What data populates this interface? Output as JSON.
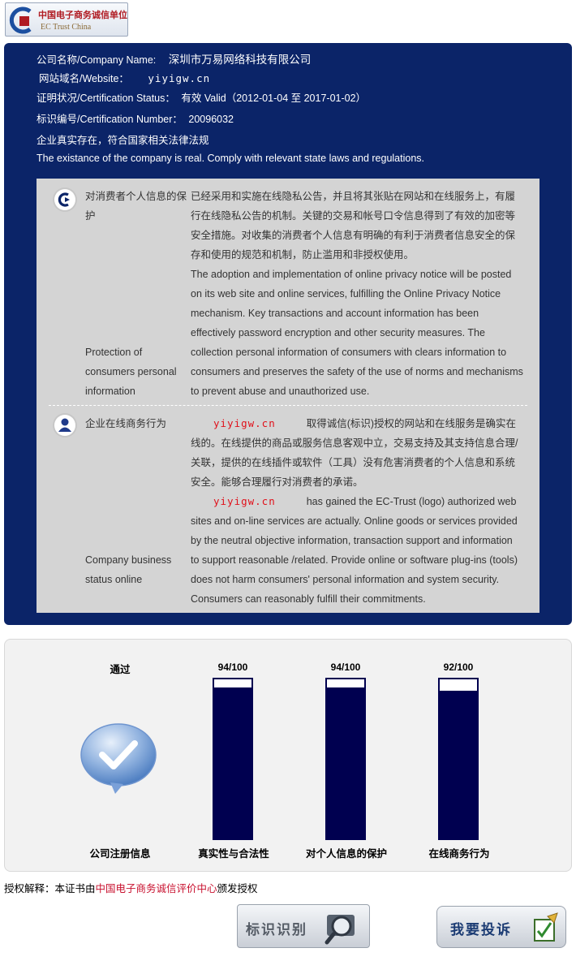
{
  "logo": {
    "title_cn": "中国电子商务诚信单位",
    "title_en": "EC Trust China"
  },
  "company": {
    "name_label": "公司名称/Company Name:",
    "name_value": "深圳市万易网络科技有限公司",
    "website_label": "网站域名/Website：",
    "website_value": "yiyigw.cn",
    "status_label": "证明状况/Certification Status：",
    "status_value": "有效 Valid（2012-01-04 至 2017-01-02）",
    "number_label": "标识编号/Certification Number：",
    "number_value": "20096032",
    "real_cn": "企业真实存在，符合国家相关法律法规",
    "real_en": "The existance of the company is real. Comply with relevant state laws and regulations."
  },
  "privacy": {
    "label_cn": "对消费者个人信息的保护",
    "label_en": "Protection of consumers personal information",
    "text_cn": "已经采用和实施在线隐私公告，并且将其张贴在网站和在线服务上，有履行在线隐私公告的机制。关键的交易和帐号口令信息得到了有效的加密等安全措施。对收集的消费者个人信息有明确的有利于消费者信息安全的保存和使用的规范和机制，防止滥用和非授权使用。",
    "text_en": "The adoption and implementation of online privacy notice will be posted on its web site and online services, fulfilling the Online Privacy Notice mechanism. Key transactions and account information has been effectively password encryption and other security measures. The collection personal information of consumers with clears information to consumers and preserves the safety of the use of norms and mechanisms to prevent abuse and unauthorized use."
  },
  "business": {
    "label_cn": "企业在线商务行为",
    "label_en": "Company business status online",
    "domain": "yiyigw.cn",
    "text_cn_after": "取得诚信(标识)授权的网站和在线服务是确实在线的。在线提供的商品或服务信息客观中立，交易支持及其支持信息合理/关联，提供的在线插件或软件（工具）没有危害消费者的个人信息和系统安全。能够合理履行对消费者的承诺。",
    "text_en_after": "has gained the EC-Trust (logo) authorized web sites and on-line services are actually. Online goods or services provided by the neutral objective information, transaction support and information to support reasonable /related. Provide online or software plug-ins (tools) does not harm consumers' personal information and system security. Consumers can reasonably fulfill their commitments."
  },
  "chart_data": {
    "type": "bar",
    "categories": [
      "公司注册信息",
      "真实性与合法性",
      "对个人信息的保护",
      "在线商务行为"
    ],
    "pass_label": "通过",
    "series": [
      {
        "values": [
          null,
          94,
          94,
          92
        ]
      }
    ],
    "score_labels": [
      "94/100",
      "94/100",
      "92/100"
    ],
    "ylim": [
      0,
      100
    ]
  },
  "footer": {
    "auth_prefix": "授权解释：本证书由",
    "auth_org": "中国电子商务诚信评价中心",
    "auth_suffix": "颁发授权",
    "identify_button": "标识识别",
    "complaint_button": "我要投诉"
  },
  "colors": {
    "panel_blue": "#0b2468",
    "bar_navy": "#000050",
    "domain_red": "#e0101a",
    "org_red": "#c8102e"
  },
  "icons": [
    "ec-trust-logo-icon",
    "privacy-shield-icon",
    "user-icon",
    "checkmark-bubble-icon",
    "magnifier-icon",
    "pencil-check-icon"
  ]
}
